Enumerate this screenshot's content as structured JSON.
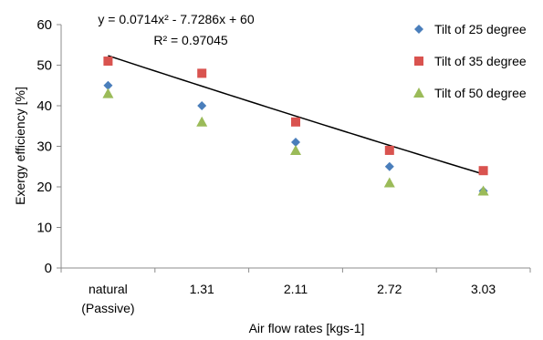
{
  "chart_data": {
    "type": "scatter",
    "xlabel": "Air flow rates [kgs-1]",
    "ylabel": "Exergy efficiency [%]",
    "ylim": [
      0,
      60
    ],
    "yticks": [
      0,
      10,
      20,
      30,
      40,
      50,
      60
    ],
    "grid": false,
    "legend_position": "top-right",
    "categories": [
      [
        "natural",
        "(Passive)"
      ],
      [
        "1.31"
      ],
      [
        "2.11"
      ],
      [
        "2.72"
      ],
      [
        "3.03"
      ]
    ],
    "series": [
      {
        "name": "Tilt of 25 degree",
        "marker": "diamond",
        "color": "#4a7ebb",
        "values": [
          45,
          40,
          31,
          25,
          19
        ]
      },
      {
        "name": "Tilt of 35 degree",
        "marker": "square",
        "color": "#d9534f",
        "values": [
          51,
          48,
          36,
          29,
          24
        ]
      },
      {
        "name": "Tilt of 50 degree",
        "marker": "triangle",
        "color": "#9bbb59",
        "values": [
          43,
          36,
          29,
          21,
          19
        ]
      }
    ],
    "trendline": {
      "color": "#000000",
      "coefficients": {
        "a": 0.0714,
        "b": -7.7286,
        "c": 60
      },
      "equation": "y = 0.0714x² - 7.7286x + 60",
      "r_squared": "R² = 0.97045"
    }
  }
}
